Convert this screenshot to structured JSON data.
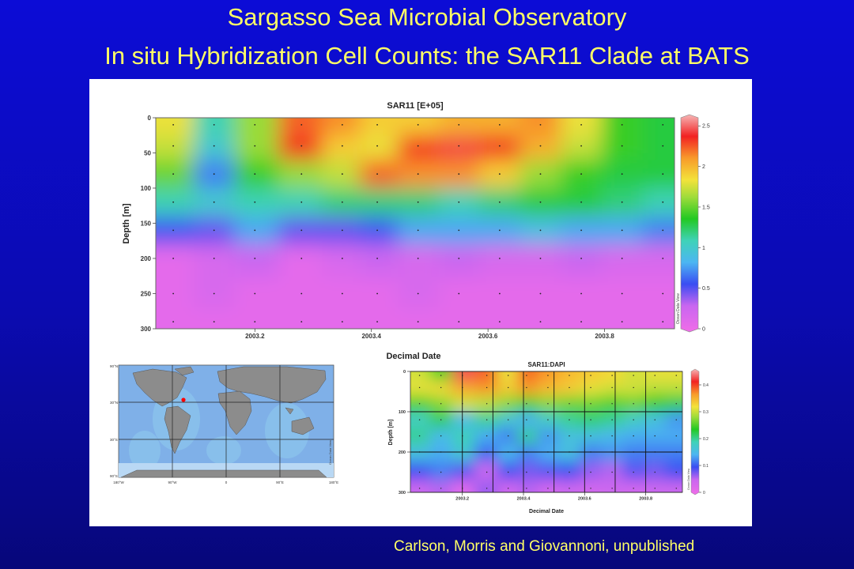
{
  "slide": {
    "title_line1": "Sargasso Sea Microbial Observatory",
    "title_line2": "In situ Hybridization Cell Counts: the SAR11 Clade at BATS",
    "citation": "Carlson, Morris and Giovannoni, unpublished",
    "background_color": "#0b0bb0",
    "title_color": "#ffff66"
  },
  "chart_data": [
    {
      "type": "heatmap",
      "title": "SAR11 [E+05]",
      "xlabel": "Decimal Date",
      "ylabel": "Depth [m]",
      "xlim": [
        2003.03,
        2003.92
      ],
      "ylim": [
        300,
        0
      ],
      "x_ticks": [
        2003.2,
        2003.4,
        2003.6,
        2003.8
      ],
      "y_ticks": [
        0,
        50,
        100,
        150,
        200,
        250,
        300
      ],
      "colorbar": {
        "ticks": [
          0,
          0.5,
          1,
          1.5,
          2,
          2.5
        ],
        "range": [
          0,
          2.6
        ],
        "credit": "Ocean Data View"
      },
      "grid": false,
      "sample_dates": [
        2003.06,
        2003.13,
        2003.2,
        2003.28,
        2003.35,
        2003.41,
        2003.48,
        2003.55,
        2003.62,
        2003.69,
        2003.76,
        2003.83,
        2003.9
      ],
      "sample_depths": [
        10,
        40,
        80,
        120,
        160,
        200,
        250,
        290
      ],
      "values": [
        [
          1.8,
          1.1,
          1.6,
          2.2,
          2.1,
          1.9,
          1.9,
          2.0,
          2.0,
          2.1,
          1.8,
          1.4,
          1.3
        ],
        [
          1.7,
          1.0,
          1.6,
          2.3,
          1.9,
          1.8,
          2.3,
          2.4,
          2.3,
          2.0,
          1.7,
          1.4,
          1.3
        ],
        [
          1.5,
          0.7,
          1.4,
          1.6,
          1.7,
          2.2,
          2.1,
          2.1,
          1.9,
          1.6,
          1.4,
          1.3,
          1.3
        ],
        [
          1.1,
          1.0,
          1.1,
          1.1,
          1.2,
          1.2,
          1.2,
          1.1,
          1.2,
          1.3,
          1.3,
          1.2,
          1.1
        ],
        [
          0.6,
          0.5,
          0.8,
          0.5,
          0.5,
          0.6,
          0.8,
          0.8,
          0.8,
          0.9,
          0.8,
          0.8,
          0.7
        ],
        [
          0.1,
          0.2,
          0.3,
          0.1,
          0.2,
          0.3,
          0.2,
          0.3,
          0.2,
          0.2,
          0.3,
          0.2,
          0.2
        ],
        [
          0.1,
          0.2,
          0.1,
          0.1,
          0.1,
          0.1,
          0.2,
          0.1,
          0.1,
          0.1,
          0.1,
          0.1,
          0.1
        ],
        [
          0.1,
          0.1,
          0.1,
          0.1,
          0.1,
          0.1,
          0.1,
          0.1,
          0.1,
          0.1,
          0.1,
          0.1,
          0.1
        ]
      ]
    },
    {
      "type": "heatmap",
      "title": "SAR11:DAPI",
      "xlabel": "Decimal Date",
      "ylabel": "Depth [m]",
      "xlim": [
        2003.03,
        2003.92
      ],
      "ylim": [
        300,
        0
      ],
      "x_ticks": [
        2003.2,
        2003.4,
        2003.6,
        2003.8
      ],
      "y_ticks": [
        0,
        100,
        200,
        300
      ],
      "colorbar": {
        "ticks": [
          0,
          0.1,
          0.2,
          0.3,
          0.4
        ],
        "range": [
          0,
          0.45
        ],
        "credit": "Ocean Data View"
      },
      "grid": true,
      "sample_dates": [
        2003.06,
        2003.13,
        2003.2,
        2003.28,
        2003.35,
        2003.41,
        2003.48,
        2003.55,
        2003.62,
        2003.69,
        2003.76,
        2003.83,
        2003.9
      ],
      "sample_depths": [
        10,
        40,
        80,
        120,
        160,
        200,
        250,
        290
      ],
      "values": [
        [
          0.3,
          0.25,
          0.42,
          0.38,
          0.31,
          0.38,
          0.36,
          0.34,
          0.33,
          0.32,
          0.3,
          0.31,
          0.31
        ],
        [
          0.31,
          0.32,
          0.35,
          0.36,
          0.33,
          0.36,
          0.34,
          0.33,
          0.31,
          0.3,
          0.3,
          0.29,
          0.29
        ],
        [
          0.25,
          0.27,
          0.3,
          0.29,
          0.27,
          0.25,
          0.27,
          0.26,
          0.26,
          0.25,
          0.26,
          0.24,
          0.22
        ],
        [
          0.18,
          0.22,
          0.15,
          0.2,
          0.17,
          0.14,
          0.18,
          0.2,
          0.21,
          0.2,
          0.18,
          0.16,
          0.13
        ],
        [
          0.2,
          0.15,
          0.19,
          0.14,
          0.12,
          0.2,
          0.13,
          0.16,
          0.16,
          0.15,
          0.14,
          0.14,
          0.14
        ],
        [
          0.16,
          0.14,
          0.17,
          0.11,
          0.15,
          0.12,
          0.14,
          0.16,
          0.12,
          0.13,
          0.12,
          0.12,
          0.12
        ],
        [
          0.1,
          0.12,
          0.09,
          0.05,
          0.1,
          0.08,
          0.09,
          0.1,
          0.07,
          0.06,
          0.09,
          0.08,
          0.1
        ],
        [
          0.05,
          0.06,
          0.02,
          0.07,
          0.04,
          0.06,
          0.04,
          0.05,
          0.04,
          0.05,
          0.04,
          0.05,
          0.05
        ]
      ]
    }
  ],
  "map": {
    "lat_labels": [
      "90°N",
      "30°N",
      "30°S",
      "90°S"
    ],
    "lon_labels": [
      "180°W",
      "90°W",
      "0",
      "90°E",
      "180°E"
    ],
    "credit": "Ocean Data View",
    "marker": "BATS",
    "marker_color": "#ff0000"
  }
}
